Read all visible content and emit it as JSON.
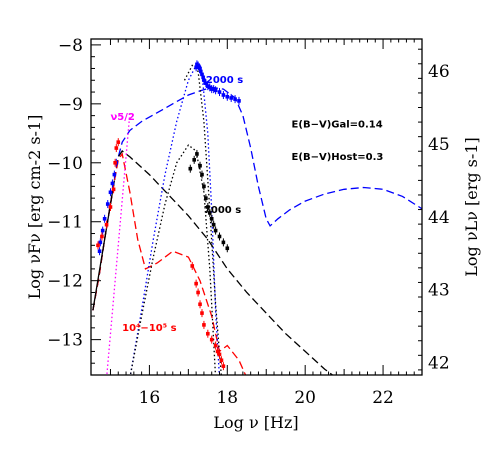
{
  "chart_data": {
    "type": "scatter",
    "title": "",
    "xlabel": "Log ν [Hz]",
    "ylabel": "Log νFν [erg cm-2 s-1]",
    "ylabel_right": "Log νLν [erg s-1]",
    "xlim": [
      14.5,
      23
    ],
    "ylim": [
      -13.6,
      -7.9
    ],
    "ylim_right": [
      41.83,
      46.44
    ],
    "x_ticks": [
      16,
      18,
      20,
      22
    ],
    "y_ticks": [
      -8,
      -9,
      -10,
      -11,
      -12,
      -13
    ],
    "y_ticks_right": [
      42,
      43,
      44,
      45,
      46
    ],
    "annotations": [
      {
        "id": "t2000",
        "text": "2000 s",
        "x": 17.45,
        "y": -8.65,
        "color": "#0000ff"
      },
      {
        "id": "t7000",
        "text": "7000 s",
        "x": 17.4,
        "y": -10.85,
        "color": "#000000"
      },
      {
        "id": "tlate",
        "text": "10⁴−10⁵ s",
        "x": 15.3,
        "y": -12.85,
        "color": "#ff0000"
      },
      {
        "id": "ebv_gal",
        "text": "E(B−V)Gal=0.14",
        "x": 19.65,
        "y": -9.4,
        "color": "#000000"
      },
      {
        "id": "ebv_host",
        "text": "E(B−V)Host=0.3",
        "x": 19.65,
        "y": -9.95,
        "color": "#000000"
      },
      {
        "id": "nu_label",
        "text": "ν5/2",
        "x": 15.0,
        "y": -9.27,
        "color": "#ff00ff"
      }
    ],
    "series": [
      {
        "id": "blue_model",
        "style": "dashed",
        "color": "#0000ff",
        "x": [
          14.55,
          14.7,
          14.85,
          15.0,
          15.1,
          15.2,
          15.3,
          15.5,
          15.8,
          16.2,
          16.6,
          17.0,
          17.3,
          17.6,
          17.9,
          18.2,
          18.4,
          18.6,
          18.8,
          19.0,
          19.1,
          19.3,
          19.6,
          20.0,
          20.5,
          21.0,
          21.5,
          22.0,
          22.5,
          23.0
        ],
        "y": [
          -12.5,
          -11.95,
          -11.3,
          -10.7,
          -10.3,
          -9.9,
          -9.65,
          -9.45,
          -9.3,
          -9.15,
          -9.0,
          -8.85,
          -8.78,
          -8.72,
          -8.75,
          -8.9,
          -9.2,
          -9.75,
          -10.4,
          -10.95,
          -11.07,
          -10.95,
          -10.8,
          -10.65,
          -10.53,
          -10.45,
          -10.42,
          -10.45,
          -10.57,
          -10.78
        ]
      },
      {
        "id": "black_model",
        "style": "dashed",
        "color": "#000000",
        "x": [
          14.55,
          14.7,
          14.85,
          15.0,
          15.1,
          15.2,
          15.3,
          15.5,
          16.0,
          16.5,
          17.0,
          17.5,
          18.0,
          18.5,
          19.0,
          19.5,
          20.0,
          20.5,
          20.8
        ],
        "y": [
          -12.5,
          -11.95,
          -11.3,
          -10.7,
          -10.3,
          -9.9,
          -9.8,
          -9.9,
          -10.2,
          -10.55,
          -10.9,
          -11.3,
          -11.8,
          -12.2,
          -12.55,
          -12.9,
          -13.2,
          -13.5,
          -13.65
        ]
      },
      {
        "id": "red_model",
        "style": "dashed",
        "color": "#ff0000",
        "x": [
          14.55,
          14.7,
          14.85,
          15.0,
          15.1,
          15.2,
          15.3,
          15.5,
          15.7,
          15.9,
          16.2,
          16.6,
          17.0,
          17.3,
          17.6,
          17.8,
          18.0,
          18.3,
          18.5
        ],
        "y": [
          -12.5,
          -11.95,
          -11.3,
          -10.7,
          -10.3,
          -9.95,
          -9.85,
          -10.5,
          -11.3,
          -11.8,
          -11.7,
          -11.5,
          -11.6,
          -12.0,
          -12.6,
          -13.2,
          -13.1,
          -13.35,
          -13.65
        ]
      },
      {
        "id": "blue_dotted",
        "style": "dotted",
        "color": "#0000ff",
        "x": [
          15.5,
          15.8,
          16.1,
          16.4,
          16.7,
          17.0,
          17.2,
          17.35,
          17.5,
          17.6,
          17.7,
          17.8
        ],
        "y": [
          -13.65,
          -12.5,
          -11.3,
          -10.2,
          -9.3,
          -8.6,
          -8.35,
          -8.5,
          -9.5,
          -10.8,
          -12.5,
          -13.65
        ]
      },
      {
        "id": "black_dotted1",
        "style": "dotted",
        "color": "#000000",
        "x": [
          15.5,
          15.8,
          16.1,
          16.4,
          16.7,
          17.0,
          17.2,
          17.4,
          17.55,
          17.7
        ],
        "y": [
          -13.65,
          -12.6,
          -11.6,
          -10.7,
          -10.0,
          -9.7,
          -9.8,
          -10.5,
          -11.8,
          -13.65
        ]
      },
      {
        "id": "black_dotted2",
        "style": "dotted",
        "color": "#000000",
        "x": [
          16.9,
          17.1,
          17.25,
          17.4,
          17.55,
          17.7,
          17.85
        ],
        "y": [
          -8.6,
          -8.35,
          -8.45,
          -9.3,
          -10.8,
          -12.4,
          -13.65
        ]
      },
      {
        "id": "magenta_dotted",
        "style": "dotted",
        "color": "#ff00ff",
        "x": [
          14.9,
          15.5
        ],
        "y": [
          -13.65,
          -9.15
        ]
      },
      {
        "id": "solid_black",
        "style": "solid",
        "color": "#000000",
        "x": [
          14.55,
          15.1
        ],
        "y": [
          -12.5,
          -10.3
        ]
      }
    ],
    "points": [
      {
        "id": "blue_pts",
        "color": "#0000ff",
        "x": [
          14.72,
          14.74,
          14.8,
          14.85,
          14.93,
          15.0,
          15.05,
          15.1,
          15.15,
          17.2,
          17.22,
          17.25,
          17.28,
          17.3,
          17.32,
          17.35,
          17.38,
          17.4,
          17.45,
          17.5,
          17.55,
          17.6,
          17.65,
          17.7,
          17.8,
          17.9,
          18.0,
          18.1,
          18.2,
          18.3
        ],
        "y": [
          -11.5,
          -11.35,
          -11.15,
          -10.95,
          -10.7,
          -10.5,
          -10.35,
          -10.2,
          -10.0,
          -8.38,
          -8.33,
          -8.35,
          -8.38,
          -8.4,
          -8.45,
          -8.5,
          -8.55,
          -8.6,
          -8.65,
          -8.7,
          -8.72,
          -8.75,
          -8.75,
          -8.77,
          -8.8,
          -8.85,
          -8.88,
          -8.9,
          -8.92,
          -8.95
        ]
      },
      {
        "id": "red_pts",
        "color": "#ff0000",
        "x": [
          14.68,
          14.78,
          14.9,
          15.0,
          15.08,
          15.12,
          15.15,
          15.2
        ],
        "y": [
          -11.4,
          -11.25,
          -11.05,
          -10.75,
          -10.45,
          -10.0,
          -9.75,
          -9.65
        ]
      },
      {
        "id": "black_pts",
        "color": "#000000",
        "x": [
          17.05,
          17.15,
          17.22,
          17.3,
          17.35,
          17.4,
          17.45,
          17.5,
          17.55,
          17.6,
          17.65,
          17.7,
          17.8,
          17.9,
          18.0
        ],
        "y": [
          -10.1,
          -9.95,
          -9.85,
          -10.05,
          -10.2,
          -10.4,
          -10.6,
          -10.75,
          -10.85,
          -10.95,
          -11.05,
          -11.15,
          -11.25,
          -11.35,
          -11.45
        ]
      },
      {
        "id": "red_late_pts",
        "color": "#ff0000",
        "x": [
          17.1,
          17.2,
          17.25,
          17.3,
          17.35,
          17.4,
          17.5,
          17.6,
          17.7,
          17.75,
          17.8,
          17.85,
          17.9
        ],
        "y": [
          -11.75,
          -12.05,
          -12.2,
          -12.4,
          -12.55,
          -12.75,
          -12.9,
          -13.0,
          -13.1,
          -13.2,
          -13.25,
          -13.35,
          -13.45
        ]
      }
    ]
  }
}
